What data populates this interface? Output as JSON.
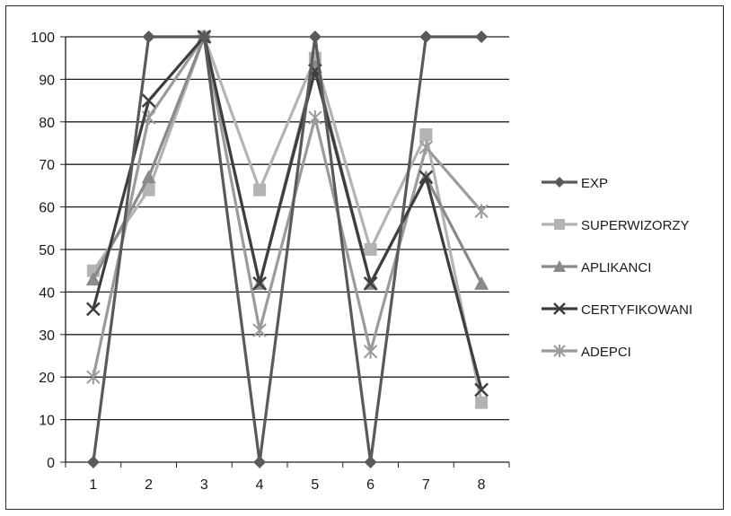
{
  "chart_data": {
    "type": "line",
    "title": "",
    "xlabel": "",
    "ylabel": "",
    "categories": [
      "1",
      "2",
      "3",
      "4",
      "5",
      "6",
      "7",
      "8"
    ],
    "ylim": [
      0,
      100
    ],
    "yticks": [
      0,
      10,
      20,
      30,
      40,
      50,
      60,
      70,
      80,
      90,
      100
    ],
    "grid": "horizontal",
    "legend_position": "right",
    "series": [
      {
        "name": "EXP",
        "values": [
          0,
          100,
          100,
          0,
          100,
          0,
          100,
          100
        ],
        "color": "#5a5a5a",
        "marker": "diamond"
      },
      {
        "name": "SUPERWIZORZY",
        "values": [
          45,
          64,
          100,
          64,
          95,
          50,
          77,
          14
        ],
        "color": "#b3b3b3",
        "marker": "square"
      },
      {
        "name": "APLIKANCI",
        "values": [
          43,
          67,
          100,
          42,
          93,
          42,
          67,
          42
        ],
        "color": "#8a8a8a",
        "marker": "triangle"
      },
      {
        "name": "CERTYFIKOWANI",
        "values": [
          36,
          85,
          100,
          42,
          92,
          42,
          67,
          17
        ],
        "color": "#3e3e3e",
        "marker": "x"
      },
      {
        "name": "ADEPCI",
        "values": [
          20,
          81,
          100,
          31,
          81,
          26,
          74,
          59
        ],
        "color": "#9b9b9b",
        "marker": "star"
      }
    ]
  }
}
